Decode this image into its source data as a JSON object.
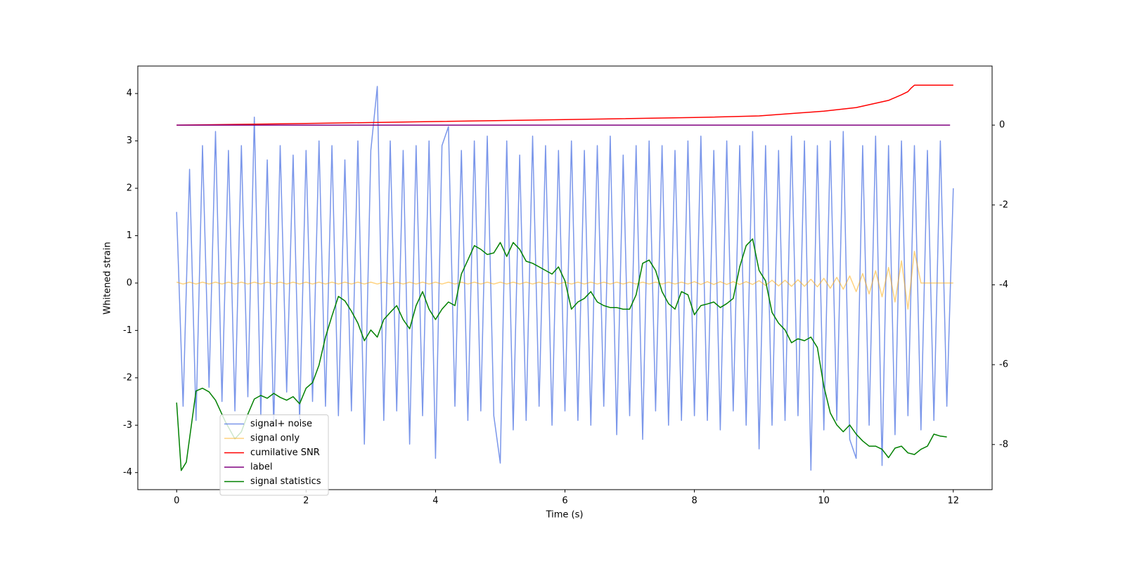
{
  "chart_data": {
    "type": "line",
    "xlabel": "Time (s)",
    "ylabel": "Whitened strain",
    "xlim": [
      -0.6,
      12.6
    ],
    "ylim": [
      -4.36,
      4.58
    ],
    "y2lim": [
      -9.13,
      1.48
    ],
    "xticks": [
      0,
      2,
      4,
      6,
      8,
      10,
      12
    ],
    "yticks": [
      -4,
      -3,
      -2,
      -1,
      0,
      1,
      2,
      3,
      4
    ],
    "y2ticks": [
      -8,
      -6,
      -4,
      -2,
      0
    ],
    "legend": "lower left",
    "x": [
      0,
      0.1,
      0.2,
      0.3,
      0.4,
      0.5,
      0.6,
      0.7,
      0.8,
      0.9,
      1,
      1.1,
      1.2,
      1.3,
      1.4,
      1.5,
      1.6,
      1.7,
      1.8,
      1.9,
      2,
      2.1,
      2.2,
      2.3,
      2.4,
      2.5,
      2.6,
      2.7,
      2.8,
      2.9,
      3,
      3.1,
      3.2,
      3.3,
      3.4,
      3.5,
      3.6,
      3.7,
      3.8,
      3.9,
      4,
      4.1,
      4.2,
      4.3,
      4.4,
      4.5,
      4.6,
      4.7,
      4.8,
      4.9,
      5,
      5.1,
      5.2,
      5.3,
      5.4,
      5.5,
      5.6,
      5.7,
      5.8,
      5.9,
      6,
      6.1,
      6.2,
      6.3,
      6.4,
      6.5,
      6.6,
      6.7,
      6.8,
      6.9,
      7,
      7.1,
      7.2,
      7.3,
      7.4,
      7.5,
      7.6,
      7.7,
      7.8,
      7.9,
      8,
      8.1,
      8.2,
      8.3,
      8.4,
      8.5,
      8.6,
      8.7,
      8.8,
      8.9,
      9,
      9.1,
      9.2,
      9.3,
      9.4,
      9.5,
      9.6,
      9.7,
      9.8,
      9.9,
      10,
      10.1,
      10.2,
      10.3,
      10.4,
      10.5,
      10.6,
      10.7,
      10.8,
      10.9,
      11,
      11.1,
      11.2,
      11.3,
      11.4,
      11.5,
      11.6,
      11.7,
      11.8,
      11.9,
      12
    ],
    "series": [
      {
        "name": "signal+ noise",
        "color": "#4169e1",
        "alpha": 0.7,
        "values": [
          1.5,
          -2.6,
          2.4,
          -2.9,
          2.9,
          -2.2,
          3.2,
          -2.5,
          2.8,
          -2.7,
          2.9,
          -2.4,
          3.5,
          -2.8,
          2.6,
          -3.0,
          2.9,
          -2.3,
          2.7,
          -2.9,
          2.8,
          -2.5,
          3.0,
          -2.6,
          2.9,
          -2.8,
          2.6,
          -2.7,
          3.0,
          -3.4,
          2.8,
          4.15,
          -2.9,
          3.0,
          -2.7,
          2.8,
          -3.4,
          2.9,
          -2.8,
          3.0,
          -3.7,
          2.9,
          3.3,
          -2.6,
          2.8,
          -2.9,
          3.0,
          -2.7,
          3.1,
          -2.8,
          -3.8,
          3.0,
          -3.1,
          2.7,
          -2.9,
          3.1,
          -2.6,
          2.9,
          -3.0,
          2.8,
          -2.7,
          3.0,
          -2.9,
          2.8,
          -3.0,
          2.9,
          -2.6,
          3.1,
          -3.2,
          2.7,
          -2.8,
          2.9,
          -3.3,
          3.0,
          -2.7,
          2.9,
          -3.0,
          2.8,
          -2.9,
          3.0,
          -2.8,
          3.1,
          -2.9,
          2.8,
          -3.1,
          3.0,
          -2.7,
          2.9,
          -3.0,
          3.2,
          -3.5,
          2.9,
          -3.0,
          2.8,
          -2.9,
          3.1,
          -2.8,
          3.0,
          -3.95,
          2.9,
          -3.1,
          3.0,
          -2.9,
          3.2,
          -3.3,
          -3.7,
          2.9,
          -3.0,
          3.1,
          -3.85,
          2.9,
          -3.2,
          3.0,
          -2.8,
          2.9,
          -3.1,
          2.8,
          -2.9,
          3.0,
          -2.6,
          2.0
        ]
      },
      {
        "name": "signal only",
        "color": "#ffa500",
        "alpha": 0.5,
        "values": [
          0.02,
          -0.02,
          0.02,
          -0.02,
          0.02,
          -0.02,
          0.02,
          -0.02,
          0.02,
          -0.02,
          0.02,
          -0.02,
          0.02,
          -0.02,
          0.02,
          -0.02,
          0.02,
          -0.02,
          0.02,
          -0.02,
          0.02,
          -0.02,
          0.02,
          -0.02,
          0.02,
          -0.02,
          0.02,
          -0.02,
          0.02,
          -0.02,
          0.02,
          -0.02,
          0.02,
          -0.02,
          0.02,
          -0.02,
          0.02,
          -0.02,
          0.02,
          -0.02,
          0.02,
          -0.02,
          0.02,
          -0.02,
          0.02,
          -0.02,
          0.02,
          -0.02,
          0.02,
          -0.02,
          0.02,
          -0.02,
          0.02,
          -0.02,
          0.02,
          -0.02,
          0.02,
          -0.02,
          0.02,
          -0.02,
          0.02,
          -0.02,
          0.02,
          -0.02,
          0.02,
          -0.02,
          0.02,
          -0.02,
          0.02,
          -0.02,
          0.02,
          -0.02,
          0.02,
          -0.02,
          0.02,
          -0.02,
          0.02,
          -0.02,
          0.02,
          -0.02,
          0.03,
          -0.03,
          0.03,
          -0.03,
          0.03,
          -0.03,
          0.03,
          -0.03,
          0.03,
          -0.03,
          0.05,
          -0.05,
          0.06,
          -0.06,
          0.06,
          -0.07,
          0.07,
          -0.07,
          0.08,
          -0.08,
          0.1,
          -0.11,
          0.12,
          -0.13,
          0.15,
          -0.18,
          0.2,
          -0.23,
          0.26,
          -0.29,
          0.33,
          -0.4,
          0.47,
          -0.55,
          0.67,
          0,
          0,
          0,
          0,
          0,
          0
        ]
      },
      {
        "name": "cumilative SNR",
        "color": "#ff0000",
        "axis": "y2",
        "x": [
          0,
          2,
          4,
          6,
          8,
          9,
          10,
          10.5,
          11,
          11.2,
          11.3,
          11.35,
          11.4,
          12
        ],
        "values": [
          0,
          0.04,
          0.09,
          0.14,
          0.19,
          0.23,
          0.35,
          0.44,
          0.62,
          0.76,
          0.84,
          0.93,
          1.0,
          1.0
        ]
      },
      {
        "name": "label",
        "color": "#800080",
        "axis": "y2",
        "x": [
          0,
          11.95
        ],
        "values": [
          0,
          0
        ]
      },
      {
        "name": "signal statistics",
        "color": "#008000",
        "axis": "y2",
        "x": [
          0,
          0.07,
          0.15,
          0.3,
          0.4,
          0.5,
          0.6,
          0.75,
          0.9,
          1,
          1.1,
          1.2,
          1.3,
          1.4,
          1.5,
          1.6,
          1.7,
          1.8,
          1.9,
          2,
          2.1,
          2.2,
          2.3,
          2.4,
          2.5,
          2.6,
          2.7,
          2.8,
          2.9,
          3,
          3.1,
          3.2,
          3.3,
          3.4,
          3.5,
          3.6,
          3.7,
          3.8,
          3.9,
          4,
          4.1,
          4.2,
          4.3,
          4.4,
          4.5,
          4.6,
          4.7,
          4.8,
          4.9,
          5,
          5.1,
          5.2,
          5.3,
          5.4,
          5.5,
          5.6,
          5.7,
          5.8,
          5.9,
          6,
          6.1,
          6.2,
          6.3,
          6.4,
          6.5,
          6.6,
          6.7,
          6.8,
          6.9,
          7,
          7.1,
          7.2,
          7.3,
          7.4,
          7.5,
          7.6,
          7.7,
          7.8,
          7.9,
          8,
          8.1,
          8.2,
          8.3,
          8.4,
          8.5,
          8.6,
          8.7,
          8.8,
          8.9,
          9,
          9.1,
          9.2,
          9.3,
          9.4,
          9.5,
          9.6,
          9.7,
          9.8,
          9.9,
          10,
          10.1,
          10.2,
          10.3,
          10.4,
          10.5,
          10.6,
          10.7,
          10.8,
          10.9,
          11,
          11.1,
          11.2,
          11.3,
          11.4,
          11.5,
          11.6,
          11.7,
          11.8,
          11.9
        ],
        "values": [
          -6.95,
          -8.65,
          -8.44,
          -6.66,
          -6.59,
          -6.68,
          -6.89,
          -7.42,
          -7.86,
          -7.68,
          -7.24,
          -6.86,
          -6.77,
          -6.84,
          -6.72,
          -6.82,
          -6.89,
          -6.8,
          -6.98,
          -6.59,
          -6.45,
          -6.01,
          -5.31,
          -4.78,
          -4.29,
          -4.4,
          -4.66,
          -4.96,
          -5.4,
          -5.13,
          -5.31,
          -4.87,
          -4.69,
          -4.52,
          -4.87,
          -5.1,
          -4.52,
          -4.17,
          -4.61,
          -4.87,
          -4.61,
          -4.43,
          -4.52,
          -3.73,
          -3.38,
          -3.02,
          -3.11,
          -3.24,
          -3.2,
          -2.94,
          -3.29,
          -2.94,
          -3.11,
          -3.41,
          -3.46,
          -3.55,
          -3.64,
          -3.73,
          -3.55,
          -3.9,
          -4.61,
          -4.43,
          -4.34,
          -4.17,
          -4.43,
          -4.52,
          -4.57,
          -4.57,
          -4.61,
          -4.61,
          -4.25,
          -3.46,
          -3.38,
          -3.64,
          -4.17,
          -4.47,
          -4.61,
          -4.17,
          -4.25,
          -4.75,
          -4.52,
          -4.48,
          -4.43,
          -4.57,
          -4.47,
          -4.34,
          -3.55,
          -3.02,
          -2.85,
          -3.64,
          -3.9,
          -4.69,
          -4.96,
          -5.13,
          -5.45,
          -5.35,
          -5.4,
          -5.31,
          -5.57,
          -6.54,
          -7.21,
          -7.51,
          -7.68,
          -7.51,
          -7.74,
          -7.91,
          -8.04,
          -8.04,
          -8.12,
          -8.33,
          -8.09,
          -8.04,
          -8.21,
          -8.25,
          -8.12,
          -8.04,
          -7.74,
          -7.79,
          -7.81
        ]
      }
    ]
  }
}
